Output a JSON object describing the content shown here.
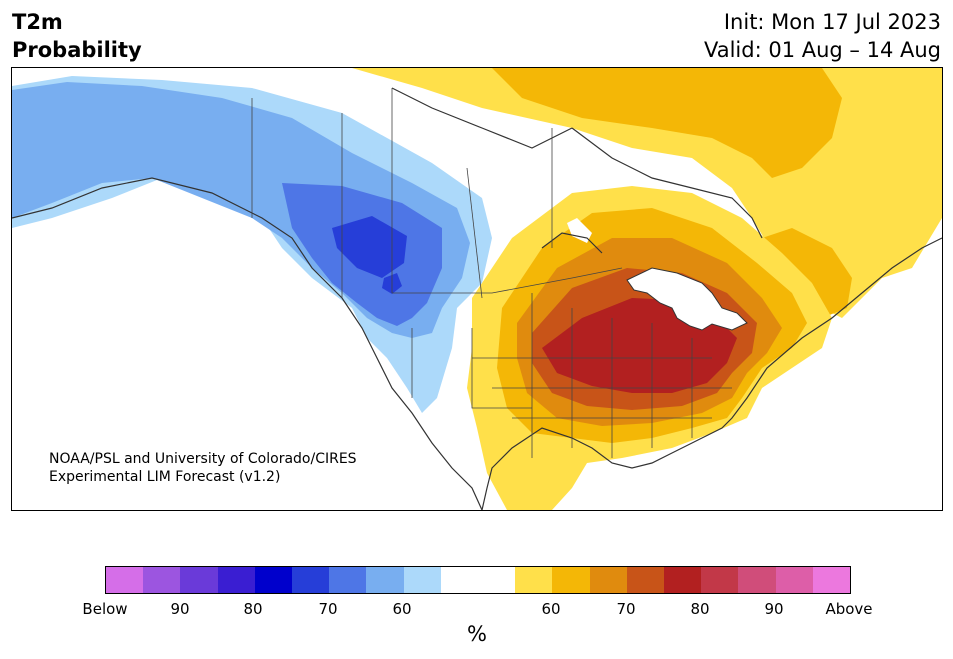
{
  "title": {
    "left_line1": "T2m",
    "left_line2": "Probability",
    "init": "Init: Mon 17 Jul 2023",
    "valid": "Valid: 01 Aug – 14 Aug"
  },
  "credit": {
    "line1": "NOAA/PSL and University of Colorado/CIRES",
    "line2": "Experimental LIM Forecast (v1.2)"
  },
  "colorbar": {
    "colors": [
      "#d56ee8",
      "#9c55e0",
      "#6a3ad9",
      "#3a1ed2",
      "#0000cc",
      "#263ed8",
      "#4e76e6",
      "#78aef0",
      "#acd9fa",
      "#ffffff",
      "#ffffff",
      "#ffe04a",
      "#f4b706",
      "#e08b0e",
      "#c85418",
      "#b22020",
      "#c23848",
      "#d04d7a",
      "#dd5ea8",
      "#ec78de"
    ],
    "ticks": [
      "Below",
      "90",
      "80",
      "70",
      "60",
      "60",
      "70",
      "80",
      "90",
      "Above"
    ],
    "unit": "%"
  },
  "map": {
    "below_colors": [
      "#acd9fa",
      "#78aef0",
      "#4e76e6",
      "#263ed8"
    ],
    "above_colors": [
      "#ffe04a",
      "#f4b706",
      "#e08b0e",
      "#c85418",
      "#b22020"
    ]
  }
}
